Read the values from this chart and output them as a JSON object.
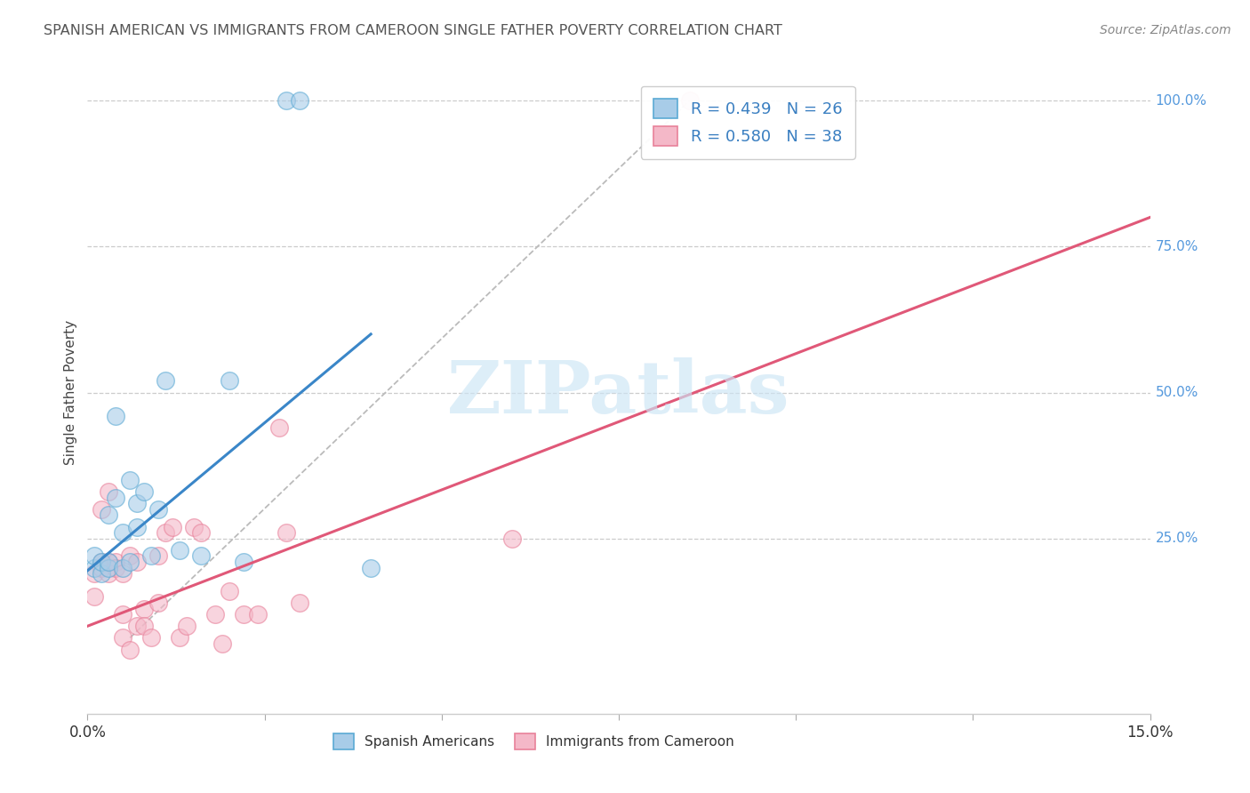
{
  "title": "SPANISH AMERICAN VS IMMIGRANTS FROM CAMEROON SINGLE FATHER POVERTY CORRELATION CHART",
  "source": "Source: ZipAtlas.com",
  "ylabel": "Single Father Poverty",
  "ylabel_right_ticks": [
    "100.0%",
    "75.0%",
    "50.0%",
    "25.0%"
  ],
  "ylabel_right_vals": [
    1.0,
    0.75,
    0.5,
    0.25
  ],
  "legend_blue_r": "R = 0.439",
  "legend_blue_n": "N = 26",
  "legend_pink_r": "R = 0.580",
  "legend_pink_n": "N = 38",
  "legend_label_blue": "Spanish Americans",
  "legend_label_pink": "Immigrants from Cameroon",
  "watermark": "ZIPatlas",
  "blue_fill_color": "#a8cce8",
  "blue_edge_color": "#5baad4",
  "blue_line_color": "#3a86c8",
  "pink_fill_color": "#f4b8c8",
  "pink_edge_color": "#e8819a",
  "pink_line_color": "#e05878",
  "legend_text_color": "#3a7fc1",
  "title_color": "#555555",
  "grid_color": "#cccccc",
  "right_tick_color": "#5599dd",
  "xlim": [
    0.0,
    0.15
  ],
  "ylim": [
    -0.05,
    1.05
  ],
  "blue_scatter_x": [
    0.001,
    0.001,
    0.002,
    0.002,
    0.003,
    0.003,
    0.003,
    0.004,
    0.004,
    0.005,
    0.005,
    0.006,
    0.006,
    0.007,
    0.007,
    0.008,
    0.009,
    0.01,
    0.011,
    0.013,
    0.016,
    0.02,
    0.022,
    0.028,
    0.03,
    0.04
  ],
  "blue_scatter_y": [
    0.2,
    0.22,
    0.19,
    0.21,
    0.2,
    0.21,
    0.29,
    0.32,
    0.46,
    0.2,
    0.26,
    0.21,
    0.35,
    0.27,
    0.31,
    0.33,
    0.22,
    0.3,
    0.52,
    0.23,
    0.22,
    0.52,
    0.21,
    1.0,
    1.0,
    0.2
  ],
  "pink_scatter_x": [
    0.001,
    0.001,
    0.002,
    0.002,
    0.002,
    0.003,
    0.003,
    0.003,
    0.004,
    0.004,
    0.005,
    0.005,
    0.005,
    0.006,
    0.006,
    0.007,
    0.007,
    0.008,
    0.008,
    0.009,
    0.01,
    0.01,
    0.011,
    0.012,
    0.013,
    0.014,
    0.015,
    0.016,
    0.018,
    0.019,
    0.02,
    0.022,
    0.024,
    0.027,
    0.028,
    0.03,
    0.06,
    0.085
  ],
  "pink_scatter_y": [
    0.19,
    0.15,
    0.21,
    0.2,
    0.3,
    0.21,
    0.19,
    0.33,
    0.21,
    0.2,
    0.19,
    0.12,
    0.08,
    0.22,
    0.06,
    0.21,
    0.1,
    0.13,
    0.1,
    0.08,
    0.22,
    0.14,
    0.26,
    0.27,
    0.08,
    0.1,
    0.27,
    0.26,
    0.12,
    0.07,
    0.16,
    0.12,
    0.12,
    0.44,
    0.26,
    0.14,
    0.25,
    1.0
  ],
  "blue_line_x": [
    0.0,
    0.04
  ],
  "blue_line_y": [
    0.195,
    0.6
  ],
  "pink_line_x": [
    0.0,
    0.15
  ],
  "pink_line_y": [
    0.1,
    0.8
  ],
  "diag_line_x": [
    0.006,
    0.085
  ],
  "diag_line_y": [
    0.08,
    1.0
  ]
}
